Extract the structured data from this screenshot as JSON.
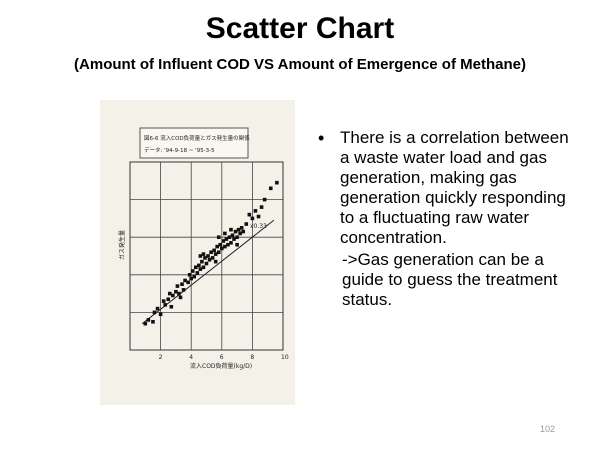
{
  "slide": {
    "title": "Scatter Chart",
    "subtitle": "(Amount of Influent COD VS Amount of Emergence of Methane)",
    "bullet": "There is a correlation between a waste water load and gas generation, making gas generation quickly responding to a fluctuating raw water concentration.",
    "sub_bullet": "->Gas generation can be a guide to guess the treatment status.",
    "page_number": "102"
  },
  "chart_data": {
    "type": "scatter",
    "title_line1": "図6-6 流入COD負荷量とガス発生量の関係",
    "title_line2": "データ: '94-9-18 ~ '95-3-5",
    "xlabel": "流入COD負荷量(kg/D)",
    "ylabel": "ガス発生量",
    "x_ticks": [
      "2",
      "4",
      "6",
      "8",
      "10"
    ],
    "xlim": [
      0,
      10
    ],
    "ylim": [
      0,
      10
    ],
    "annotation": "x0.33",
    "grid": true,
    "regression_line": {
      "x1": 0.8,
      "y1": 1.4,
      "x2": 9.4,
      "y2": 6.9
    },
    "points": [
      [
        1.0,
        1.4
      ],
      [
        1.2,
        1.6
      ],
      [
        1.5,
        1.5
      ],
      [
        1.6,
        2.0
      ],
      [
        1.8,
        2.2
      ],
      [
        2.0,
        1.9
      ],
      [
        2.2,
        2.6
      ],
      [
        2.3,
        2.4
      ],
      [
        2.5,
        2.7
      ],
      [
        2.6,
        3.0
      ],
      [
        2.8,
        2.9
      ],
      [
        3.0,
        3.1
      ],
      [
        3.1,
        3.4
      ],
      [
        3.2,
        3.0
      ],
      [
        3.4,
        3.5
      ],
      [
        3.5,
        3.2
      ],
      [
        3.6,
        3.7
      ],
      [
        3.8,
        3.6
      ],
      [
        3.9,
        4.0
      ],
      [
        4.0,
        3.8
      ],
      [
        4.1,
        4.2
      ],
      [
        4.2,
        3.9
      ],
      [
        4.3,
        4.4
      ],
      [
        4.4,
        4.1
      ],
      [
        4.5,
        4.5
      ],
      [
        4.6,
        4.3
      ],
      [
        4.7,
        4.7
      ],
      [
        4.8,
        4.4
      ],
      [
        4.9,
        4.9
      ],
      [
        5.0,
        4.6
      ],
      [
        5.1,
        5.0
      ],
      [
        5.2,
        4.8
      ],
      [
        5.3,
        5.2
      ],
      [
        5.4,
        4.9
      ],
      [
        5.5,
        5.3
      ],
      [
        5.6,
        5.1
      ],
      [
        5.7,
        5.5
      ],
      [
        5.8,
        5.2
      ],
      [
        5.9,
        5.6
      ],
      [
        6.0,
        5.4
      ],
      [
        6.1,
        5.8
      ],
      [
        6.2,
        5.5
      ],
      [
        6.3,
        5.9
      ],
      [
        6.4,
        5.6
      ],
      [
        6.5,
        6.0
      ],
      [
        6.6,
        5.7
      ],
      [
        6.7,
        6.1
      ],
      [
        6.8,
        5.9
      ],
      [
        6.9,
        6.3
      ],
      [
        7.0,
        6.0
      ],
      [
        7.1,
        6.4
      ],
      [
        7.2,
        6.2
      ],
      [
        7.3,
        6.5
      ],
      [
        7.4,
        6.3
      ],
      [
        7.6,
        6.7
      ],
      [
        7.8,
        7.2
      ],
      [
        8.0,
        7.0
      ],
      [
        8.2,
        7.4
      ],
      [
        8.4,
        7.1
      ],
      [
        8.6,
        7.6
      ],
      [
        8.8,
        8.0
      ],
      [
        9.2,
        8.6
      ],
      [
        9.6,
        8.9
      ],
      [
        4.8,
        5.1
      ],
      [
        5.6,
        4.7
      ],
      [
        6.2,
        6.2
      ],
      [
        3.3,
        2.8
      ],
      [
        4.6,
        5.0
      ],
      [
        5.8,
        6.0
      ],
      [
        6.6,
        6.4
      ],
      [
        7.0,
        5.6
      ],
      [
        2.7,
        2.3
      ]
    ]
  }
}
